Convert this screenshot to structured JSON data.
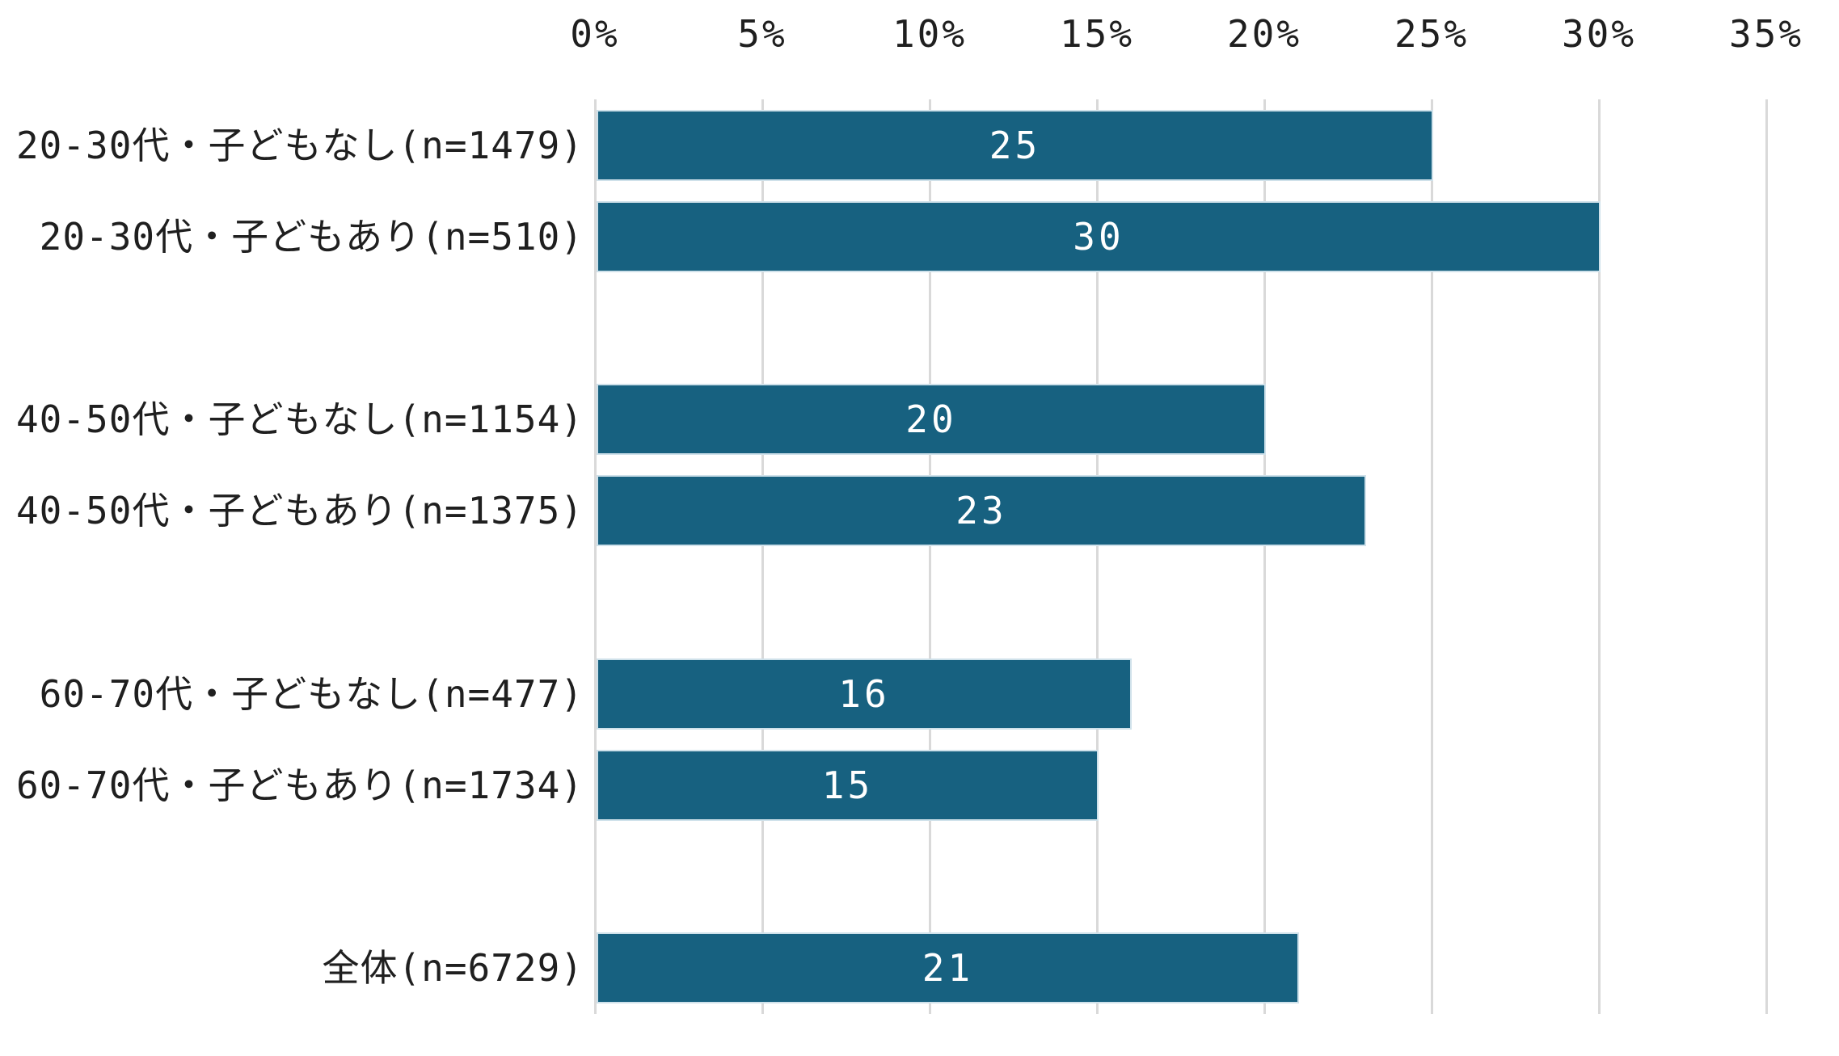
{
  "chart_data": {
    "type": "bar",
    "orientation": "horizontal",
    "title": "",
    "x_axis": {
      "position": "top",
      "unit": "%",
      "min": 0,
      "max": 35,
      "tick_step": 5,
      "ticks": [
        "0%",
        "5%",
        "10%",
        "15%",
        "20%",
        "25%",
        "30%",
        "35%"
      ]
    },
    "categories": [
      "20-30代・子どもなし(n=1479)",
      "20-30代・子どもあり(n=510)",
      "40-50代・子どもなし(n=1154)",
      "40-50代・子どもあり(n=1375)",
      "60-70代・子どもなし(n=477)",
      "60-70代・子どもあり(n=1734)",
      "全体(n=6729)"
    ],
    "values": [
      25,
      30,
      20,
      23,
      16,
      15,
      21
    ],
    "items": [
      {
        "label": "20-30代・子どもなし(n=1479)",
        "value": 25,
        "row": 0
      },
      {
        "label": "20-30代・子どもあり(n=510)",
        "value": 30,
        "row": 1
      },
      {
        "label": "40-50代・子どもなし(n=1154)",
        "value": 20,
        "row": 3
      },
      {
        "label": "40-50代・子どもあり(n=1375)",
        "value": 23,
        "row": 4
      },
      {
        "label": "60-70代・子どもなし(n=477)",
        "value": 16,
        "row": 6
      },
      {
        "label": "60-70代・子どもあり(n=1734)",
        "value": 15,
        "row": 7
      },
      {
        "label": "全体(n=6729)",
        "value": 21,
        "row": 9
      }
    ],
    "grid": true,
    "legend": false,
    "value_labels": "centered-inside-bar",
    "colors": {
      "bar": "#176180",
      "bar_border": "#cfe1ea",
      "gridline": "#d9d9d9",
      "axis_text": "#1f1f1f",
      "value_label": "#ffffff",
      "background": "#ffffff"
    }
  }
}
